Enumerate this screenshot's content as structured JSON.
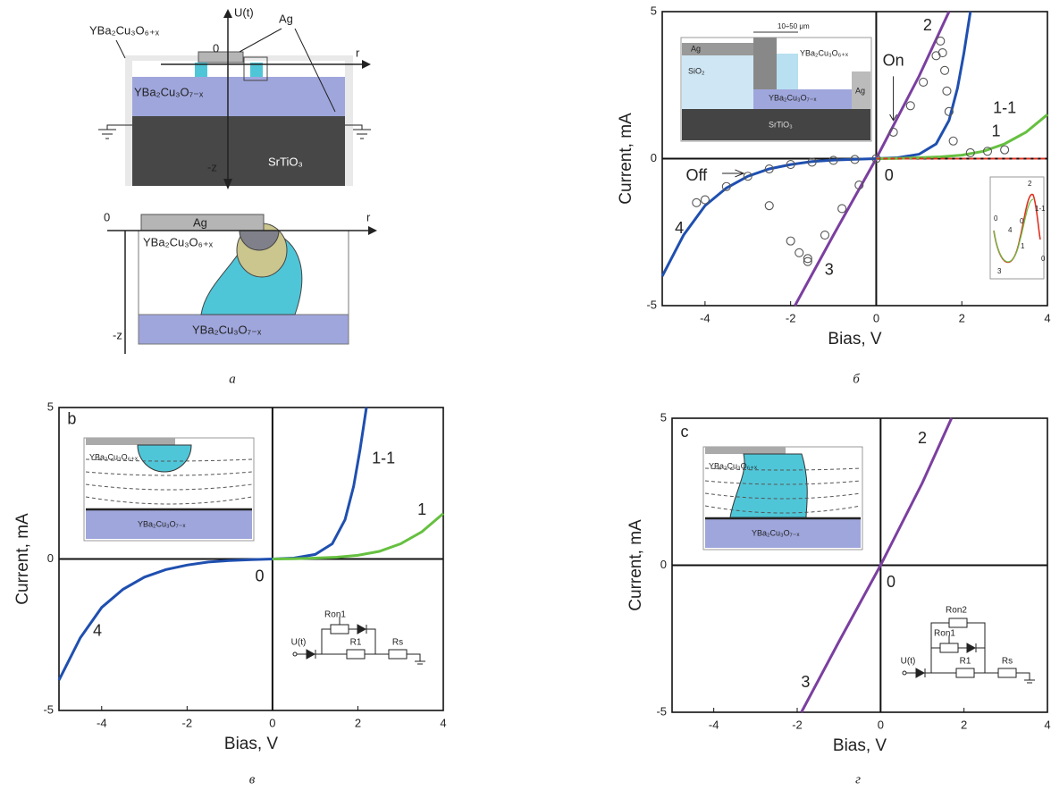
{
  "panel_a": {
    "caption": "а",
    "top": {
      "u": "U(t)",
      "ag": "Ag",
      "film": "YBa₂Cu₃O₆₊ₓ",
      "origin": "0",
      "r": "r",
      "base": "YBa₂Cu₃O₇₋ₓ",
      "substrate": "SrTiO₃",
      "z": "-z"
    },
    "bottom": {
      "origin": "0",
      "r": "r",
      "ag": "Ag",
      "film": "YBa₂Cu₃O₆₊ₓ",
      "base": "YBa₂Cu₃O₇₋ₓ",
      "z": "-z"
    }
  },
  "chart_data": [
    {
      "type": "line",
      "caption": "б",
      "xlabel": "Bias, V",
      "ylabel": "Current, mA",
      "xlim": [
        -5,
        4
      ],
      "ylim": [
        -5,
        5
      ],
      "xticks": [
        -4,
        -2,
        0,
        2,
        4
      ],
      "yticks": [
        -5,
        0,
        5
      ],
      "series": [
        {
          "name": "2",
          "color": "#7b3fa0",
          "x": [
            -1.9,
            -1,
            0,
            1,
            1.7
          ],
          "values": [
            -5,
            -2.6,
            0,
            2.8,
            5
          ]
        },
        {
          "name": "1-1",
          "color": "#1f4fb0",
          "x": [
            -5,
            -4.5,
            -4,
            -3.5,
            -3,
            -2.5,
            -2,
            -1.5,
            -1,
            -0.5,
            0,
            0.5,
            1,
            1.4,
            1.7,
            1.9,
            2.05,
            2.2
          ],
          "values": [
            -4,
            -2.6,
            -1.6,
            -1,
            -0.6,
            -0.35,
            -0.2,
            -0.1,
            -0.05,
            -0.02,
            0,
            0.03,
            0.15,
            0.5,
            1.3,
            2.4,
            3.6,
            5
          ]
        },
        {
          "name": "1",
          "color": "#66c040",
          "x": [
            0,
            0.5,
            1,
            1.5,
            2,
            2.5,
            3,
            3.5,
            4
          ],
          "values": [
            0,
            0.01,
            0.03,
            0.06,
            0.12,
            0.25,
            0.5,
            0.9,
            1.5
          ]
        },
        {
          "color": "#e03020",
          "dash": true,
          "x": [
            0,
            4
          ],
          "values": [
            0,
            0
          ]
        },
        {
          "color": "#555555",
          "marker": "circle",
          "x": [
            -1.6,
            -1.2,
            -0.8,
            -0.4,
            0,
            0.4,
            0.8,
            1.1,
            1.4,
            1.5,
            1.55,
            1.6,
            1.65,
            1.7,
            1.8,
            2.2,
            2.6,
            3.0,
            -0.5,
            -1,
            -1.5,
            -2,
            -2.5,
            -3,
            -3.5,
            -4,
            -4.2,
            -2.5,
            -2,
            -1.8,
            -1.6
          ],
          "values": [
            -3.5,
            -2.6,
            -1.7,
            -0.9,
            0,
            0.9,
            1.8,
            2.6,
            3.5,
            4,
            3.6,
            3,
            2.3,
            1.6,
            0.6,
            0.2,
            0.25,
            0.3,
            -0.03,
            -0.06,
            -0.12,
            -0.2,
            -0.35,
            -0.6,
            -0.95,
            -1.4,
            -1.5,
            -1.6,
            -2.8,
            -3.2,
            -3.4
          ]
        }
      ],
      "annotations": [
        "On",
        "Off",
        "0",
        "4",
        "3"
      ],
      "inset_labels": [
        "10÷50 μm",
        "Ag",
        "YBa₂Cu₃O₆₊ₓ",
        "SiO₂",
        "Ag",
        "YBa₂Cu₃O₇₋ₓ",
        "SrTiO₃"
      ],
      "loop_labels": [
        "2",
        "1-1",
        "0",
        "4",
        "1",
        "0",
        "0",
        "3"
      ]
    },
    {
      "type": "line",
      "caption": "в",
      "xlabel": "Bias, V",
      "ylabel": "Current, mA",
      "xlim": [
        -5,
        4
      ],
      "ylim": [
        -5,
        5
      ],
      "xticks": [
        -4,
        -2,
        0,
        2,
        4
      ],
      "yticks": [
        -5,
        0,
        5
      ],
      "series": [
        {
          "name": "1-1",
          "color": "#1f4fb0",
          "x": [
            -5,
            -4.5,
            -4,
            -3.5,
            -3,
            -2.5,
            -2,
            -1.5,
            -1,
            -0.5,
            0,
            0.5,
            1,
            1.4,
            1.7,
            1.9,
            2.05,
            2.2
          ],
          "values": [
            -4,
            -2.6,
            -1.6,
            -1,
            -0.6,
            -0.35,
            -0.2,
            -0.1,
            -0.05,
            -0.02,
            0,
            0.03,
            0.15,
            0.5,
            1.3,
            2.4,
            3.6,
            5
          ]
        },
        {
          "name": "1",
          "color": "#66c040",
          "x": [
            0,
            0.5,
            1,
            1.5,
            2,
            2.5,
            3,
            3.5,
            4
          ],
          "values": [
            0,
            0.01,
            0.03,
            0.06,
            0.12,
            0.25,
            0.5,
            0.9,
            1.5
          ]
        }
      ],
      "annotations": [
        "b",
        "0",
        "4"
      ],
      "inset_labels": [
        "YBa₂Cu₃O₆₊ₓ",
        "YBa₂Cu₃O₇₋ₓ"
      ],
      "circuit_labels": [
        "Ron1",
        "U(t)",
        "R1",
        "Rs"
      ]
    },
    {
      "type": "line",
      "caption": "г",
      "xlabel": "Bias, V",
      "ylabel": "Current, mA",
      "xlim": [
        -5,
        4
      ],
      "ylim": [
        -5,
        5
      ],
      "xticks": [
        -4,
        -2,
        0,
        2,
        4
      ],
      "yticks": [
        -5,
        0,
        5
      ],
      "series": [
        {
          "name": "2",
          "color": "#7b3fa0",
          "x": [
            -1.9,
            -1,
            0,
            1,
            1.7
          ],
          "values": [
            -5,
            -2.6,
            0,
            2.8,
            5
          ]
        }
      ],
      "annotations": [
        "c",
        "0",
        "3"
      ],
      "inset_labels": [
        "YBa₂Cu₃O₆₊ₓ",
        "YBa₂Cu₃O₇₋ₓ"
      ],
      "circuit_labels": [
        "Ron1",
        "U(t)",
        "R1",
        "Rs",
        "Ron2"
      ]
    }
  ]
}
